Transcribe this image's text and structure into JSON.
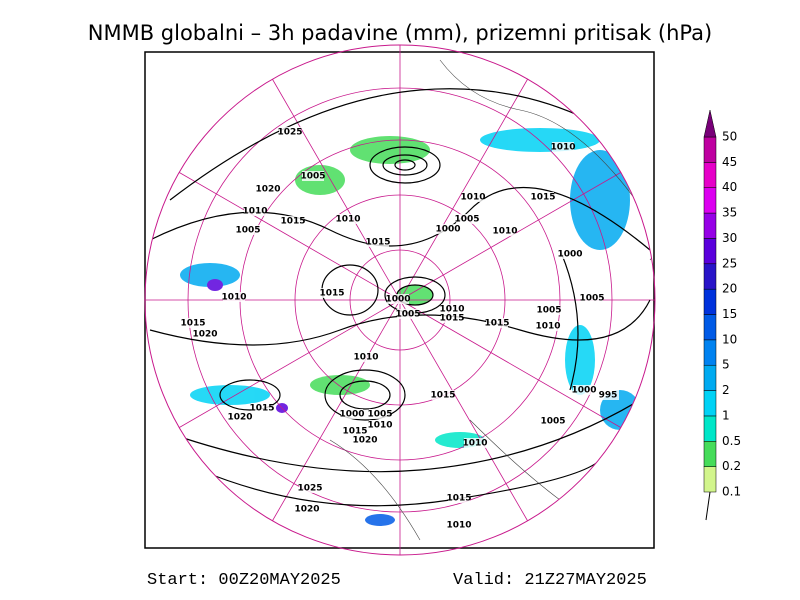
{
  "header": {
    "title": "NMMB globalni – 3h padavine (mm), prizemni pritisak (hPa)"
  },
  "footer": {
    "start": "Start: 00Z20MAY2025",
    "valid": "Valid: 21Z27MAY2025"
  },
  "colorbar": {
    "levels": [
      0.1,
      0.2,
      0.5,
      1,
      2,
      5,
      10,
      15,
      20,
      25,
      30,
      35,
      40,
      45,
      50
    ],
    "colors": [
      "#d2f58c",
      "#46dc5a",
      "#00e6c8",
      "#00d2f5",
      "#00aaf0",
      "#0082f0",
      "#005ae6",
      "#0032dc",
      "#2814c8",
      "#5a00dc",
      "#9600e6",
      "#dc00f0",
      "#e600c8",
      "#be00a0",
      "#780078"
    ]
  },
  "isobar_labels": [
    1025,
    1005,
    1020,
    1010,
    1015,
    1010,
    1005,
    1015,
    1010,
    1015,
    1005,
    1000,
    1010,
    1010,
    1000,
    1010,
    1015,
    1000,
    1005,
    1010,
    1015,
    1015,
    1005,
    1005,
    1010,
    1015,
    1020,
    1010,
    1020,
    1015,
    1000,
    1005,
    1010,
    1015,
    1020,
    1015,
    1000,
    995,
    1005,
    1010,
    1025,
    1020,
    1015,
    1010
  ]
}
